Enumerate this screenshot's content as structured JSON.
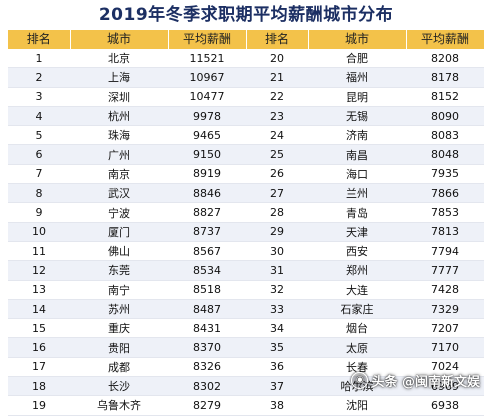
{
  "title": "2019年冬季求职期平均薪酬城市分布",
  "headers": [
    "排名",
    "城市",
    "平均薪酬",
    "排名",
    "城市",
    "平均薪酬"
  ],
  "rows": [
    {
      "left": {
        "rank": "1",
        "city": "北京",
        "salary": "11521"
      },
      "right": {
        "rank": "20",
        "city": "合肥",
        "salary": "8208"
      }
    },
    {
      "left": {
        "rank": "2",
        "city": "上海",
        "salary": "10967"
      },
      "right": {
        "rank": "21",
        "city": "福州",
        "salary": "8178"
      }
    },
    {
      "left": {
        "rank": "3",
        "city": "深圳",
        "salary": "10477"
      },
      "right": {
        "rank": "22",
        "city": "昆明",
        "salary": "8152"
      }
    },
    {
      "left": {
        "rank": "4",
        "city": "杭州",
        "salary": "9978"
      },
      "right": {
        "rank": "23",
        "city": "无锡",
        "salary": "8090"
      }
    },
    {
      "left": {
        "rank": "5",
        "city": "珠海",
        "salary": "9465"
      },
      "right": {
        "rank": "24",
        "city": "济南",
        "salary": "8083"
      }
    },
    {
      "left": {
        "rank": "6",
        "city": "广州",
        "salary": "9150"
      },
      "right": {
        "rank": "25",
        "city": "南昌",
        "salary": "8048"
      }
    },
    {
      "left": {
        "rank": "7",
        "city": "南京",
        "salary": "8919"
      },
      "right": {
        "rank": "26",
        "city": "海口",
        "salary": "7935"
      }
    },
    {
      "left": {
        "rank": "8",
        "city": "武汉",
        "salary": "8846"
      },
      "right": {
        "rank": "27",
        "city": "兰州",
        "salary": "7866"
      }
    },
    {
      "left": {
        "rank": "9",
        "city": "宁波",
        "salary": "8827"
      },
      "right": {
        "rank": "28",
        "city": "青岛",
        "salary": "7853"
      }
    },
    {
      "left": {
        "rank": "10",
        "city": "厦门",
        "salary": "8737"
      },
      "right": {
        "rank": "29",
        "city": "天津",
        "salary": "7813"
      }
    },
    {
      "left": {
        "rank": "11",
        "city": "佛山",
        "salary": "8567"
      },
      "right": {
        "rank": "30",
        "city": "西安",
        "salary": "7794"
      }
    },
    {
      "left": {
        "rank": "12",
        "city": "东莞",
        "salary": "8534"
      },
      "right": {
        "rank": "31",
        "city": "郑州",
        "salary": "7777"
      }
    },
    {
      "left": {
        "rank": "13",
        "city": "南宁",
        "salary": "8518"
      },
      "right": {
        "rank": "32",
        "city": "大连",
        "salary": "7428"
      }
    },
    {
      "left": {
        "rank": "14",
        "city": "苏州",
        "salary": "8487"
      },
      "right": {
        "rank": "33",
        "city": "石家庄",
        "salary": "7329"
      }
    },
    {
      "left": {
        "rank": "15",
        "city": "重庆",
        "salary": "8431"
      },
      "right": {
        "rank": "34",
        "city": "烟台",
        "salary": "7207"
      }
    },
    {
      "left": {
        "rank": "16",
        "city": "贵阳",
        "salary": "8370"
      },
      "right": {
        "rank": "35",
        "city": "太原",
        "salary": "7170"
      }
    },
    {
      "left": {
        "rank": "17",
        "city": "成都",
        "salary": "8326"
      },
      "right": {
        "rank": "36",
        "city": "长春",
        "salary": "7024"
      }
    },
    {
      "left": {
        "rank": "18",
        "city": "长沙",
        "salary": "8302"
      },
      "right": {
        "rank": "37",
        "city": "哈尔滨",
        "salary": "6969"
      }
    },
    {
      "left": {
        "rank": "19",
        "city": "乌鲁木齐",
        "salary": "8279"
      },
      "right": {
        "rank": "38",
        "city": "沈阳",
        "salary": "6938"
      }
    }
  ],
  "watermark": {
    "text": "头条 @闽南新文娱",
    "icon": "eye-logo-icon"
  },
  "colors": {
    "title": "#1c2f63",
    "header_bg": "#f3c24a",
    "stripe": "#eef1f8"
  }
}
